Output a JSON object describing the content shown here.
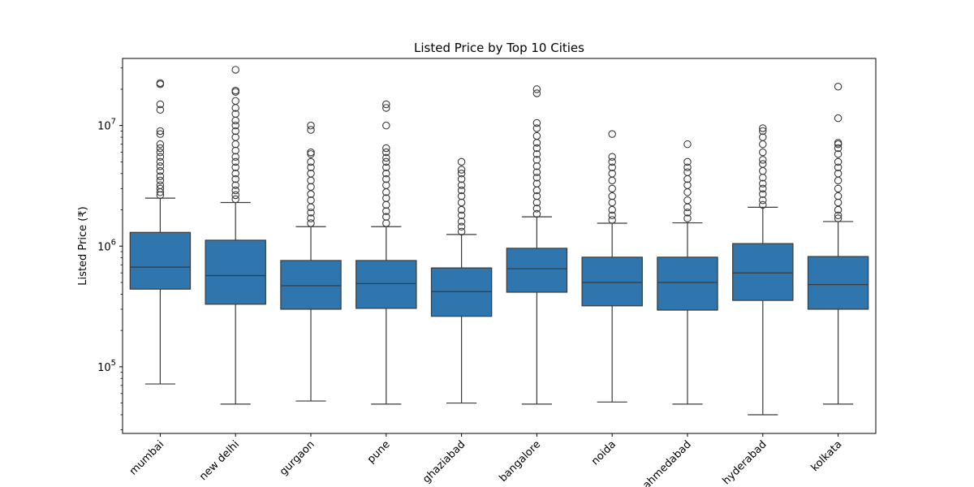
{
  "chart_data": {
    "type": "box",
    "title": "Listed Price by Top 10 Cities",
    "xlabel": "",
    "ylabel": "Listed Price (₹)",
    "yscale": "log",
    "ylim": [
      28000,
      36000000
    ],
    "yticks": [
      {
        "value": 100000,
        "base": "10",
        "exp": "5"
      },
      {
        "value": 1000000,
        "base": "10",
        "exp": "6"
      },
      {
        "value": 10000000,
        "base": "10",
        "exp": "7"
      }
    ],
    "box_color": "#2f76ae",
    "categories": [
      "mumbai",
      "new delhi",
      "gurgaon",
      "pune",
      "ghaziabad",
      "bangalore",
      "noida",
      "ahmedabad",
      "hyderabad",
      "kolkata"
    ],
    "boxes": [
      {
        "category": "mumbai",
        "whisker_low": 72000,
        "q1": 440000,
        "median": 670000,
        "q3": 1300000,
        "whisker_high": 2500000,
        "outliers": [
          22500000,
          22000000,
          15000000,
          13500000,
          9000000,
          8500000,
          7000000,
          6500000,
          6000000,
          5500000,
          5000000,
          4600000,
          4200000,
          3800000,
          3500000,
          3200000,
          3000000,
          2800000,
          2650000
        ]
      },
      {
        "category": "new delhi",
        "whisker_low": 49000,
        "q1": 330000,
        "median": 570000,
        "q3": 1120000,
        "whisker_high": 2300000,
        "outliers": [
          29000000,
          19500000,
          19000000,
          16000000,
          14000000,
          12500000,
          11000000,
          10000000,
          9000000,
          8000000,
          7000000,
          6200000,
          5500000,
          5000000,
          4500000,
          4000000,
          3600000,
          3200000,
          2900000,
          2650000,
          2450000
        ]
      },
      {
        "category": "gurgaon",
        "whisker_low": 52000,
        "q1": 300000,
        "median": 470000,
        "q3": 760000,
        "whisker_high": 1450000,
        "outliers": [
          10000000,
          9200000,
          6000000,
          5800000,
          5000000,
          4500000,
          4000000,
          3500000,
          3100000,
          2700000,
          2400000,
          2100000,
          1900000,
          1700000,
          1550000
        ]
      },
      {
        "category": "pune",
        "whisker_low": 49000,
        "q1": 305000,
        "median": 490000,
        "q3": 760000,
        "whisker_high": 1450000,
        "outliers": [
          15000000,
          14000000,
          10000000,
          6500000,
          6000000,
          5400000,
          5000000,
          4500000,
          4000000,
          3600000,
          3200000,
          2800000,
          2500000,
          2200000,
          1950000,
          1750000,
          1550000
        ]
      },
      {
        "category": "ghaziabad",
        "whisker_low": 50000,
        "q1": 262000,
        "median": 420000,
        "q3": 660000,
        "whisker_high": 1250000,
        "outliers": [
          5000000,
          4300000,
          4000000,
          3600000,
          3200000,
          2900000,
          2600000,
          2300000,
          2000000,
          1800000,
          1600000,
          1450000,
          1320000
        ]
      },
      {
        "category": "bangalore",
        "whisker_low": 49000,
        "q1": 415000,
        "median": 650000,
        "q3": 960000,
        "whisker_high": 1750000,
        "outliers": [
          20000000,
          18500000,
          10500000,
          9500000,
          8200000,
          7200000,
          6500000,
          5800000,
          5200000,
          4600000,
          4100000,
          3700000,
          3300000,
          2900000,
          2600000,
          2300000,
          2050000,
          1850000
        ]
      },
      {
        "category": "noida",
        "whisker_low": 51000,
        "q1": 320000,
        "median": 500000,
        "q3": 810000,
        "whisker_high": 1550000,
        "outliers": [
          8500000,
          5500000,
          5000000,
          4500000,
          4000000,
          3500000,
          3000000,
          2600000,
          2300000,
          2000000,
          1800000,
          1650000
        ]
      },
      {
        "category": "ahmedabad",
        "whisker_low": 49000,
        "q1": 295000,
        "median": 500000,
        "q3": 810000,
        "whisker_high": 1560000,
        "outliers": [
          7000000,
          5000000,
          4500000,
          4100000,
          3600000,
          3200000,
          2800000,
          2400000,
          2100000,
          1900000,
          1700000
        ]
      },
      {
        "category": "hyderabad",
        "whisker_low": 40000,
        "q1": 355000,
        "median": 600000,
        "q3": 1050000,
        "whisker_high": 2100000,
        "outliers": [
          9500000,
          9000000,
          8000000,
          7000000,
          6000000,
          5200000,
          4800000,
          4200000,
          3700000,
          3300000,
          3000000,
          2700000,
          2400000,
          2200000
        ]
      },
      {
        "category": "kolkata",
        "whisker_low": 49000,
        "q1": 300000,
        "median": 480000,
        "q3": 820000,
        "whisker_high": 1600000,
        "outliers": [
          21000000,
          11500000,
          7200000,
          7000000,
          6500000,
          5800000,
          5000000,
          4500000,
          4000000,
          3500000,
          3000000,
          2600000,
          2300000,
          2000000,
          1800000,
          1700000
        ]
      }
    ]
  }
}
